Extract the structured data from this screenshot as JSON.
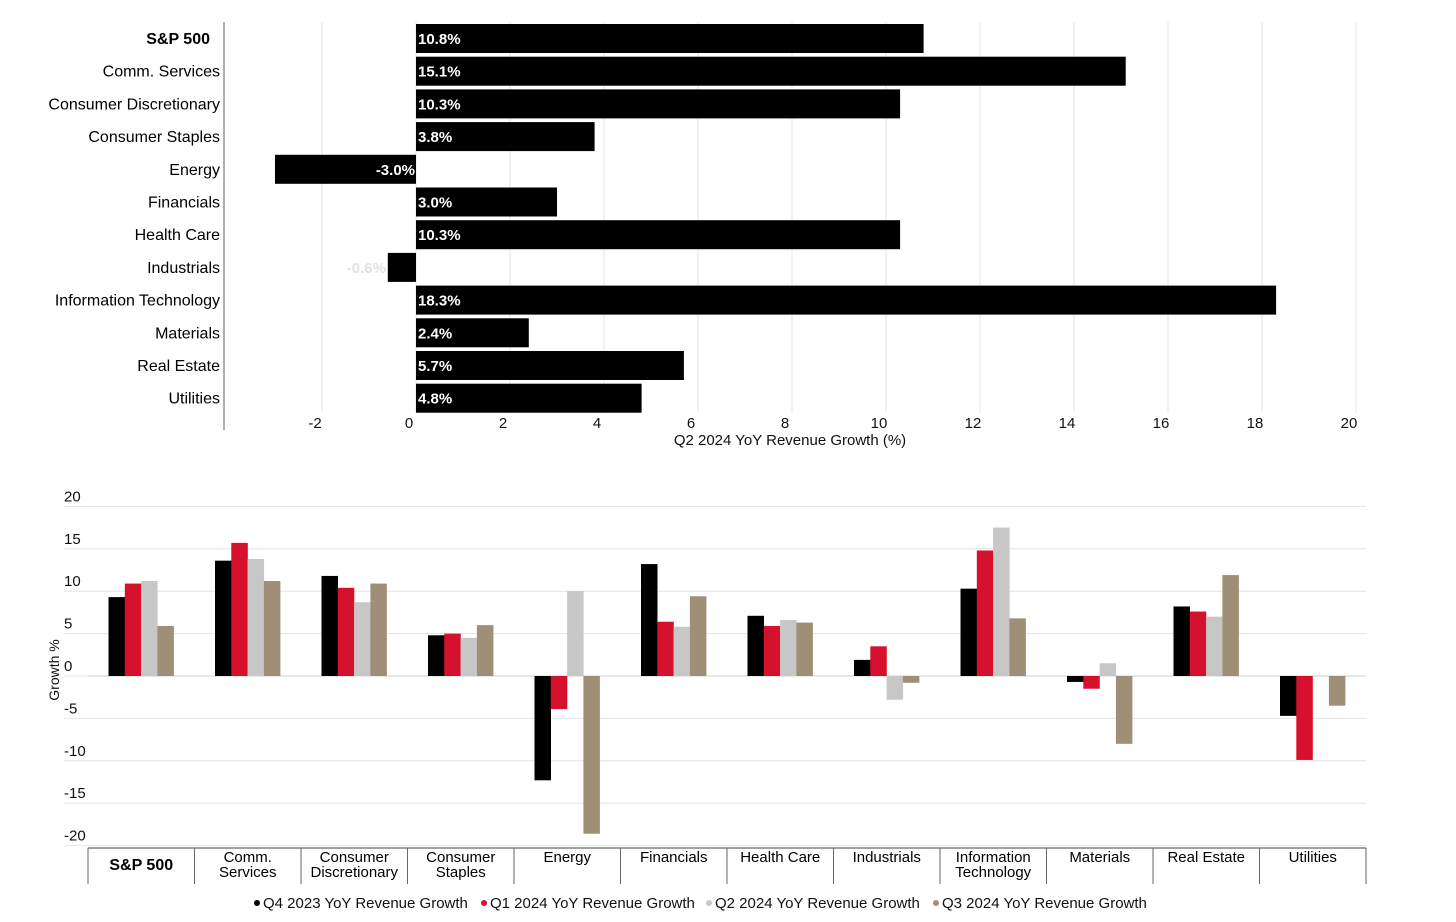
{
  "chart_data": [
    {
      "type": "bar",
      "orientation": "horizontal",
      "title": "",
      "xlabel": "Q2 2024 YoY Revenue Growth (%)",
      "ylabel": "",
      "xlim": [
        -4,
        20
      ],
      "ticks": [
        -2,
        0,
        2,
        4,
        6,
        8,
        10,
        12,
        14,
        16,
        18,
        20
      ],
      "grid": true,
      "bar_color": "#000000",
      "categories": [
        "S&P 500",
        "Comm. Services",
        "Consumer Discretionary",
        "Consumer Staples",
        "Energy",
        "Financials",
        "Health Care",
        "Industrials",
        "Information Technology",
        "Materials",
        "Real Estate",
        "Utilities"
      ],
      "values": [
        10.8,
        15.1,
        10.3,
        3.8,
        -3.0,
        3.0,
        10.3,
        -0.6,
        18.3,
        2.4,
        5.7,
        4.8
      ],
      "data_labels": [
        "10.8%",
        "15.1%",
        "10.3%",
        "3.8%",
        "-3.0%",
        "3.0%",
        "10.3%",
        "-0.6%",
        "18.3%",
        "2.4%",
        "5.7%",
        "4.8%"
      ]
    },
    {
      "type": "bar",
      "orientation": "vertical",
      "title": "",
      "xlabel": "",
      "ylabel": "Growth %",
      "ylim": [
        -20,
        20
      ],
      "ticks": [
        20,
        15,
        10,
        5,
        0,
        -5,
        -10,
        -15,
        -20
      ],
      "grid": true,
      "legend_position": "bottom",
      "categories": [
        [
          "S&P 500"
        ],
        [
          "Comm.",
          "Services"
        ],
        [
          "Consumer",
          "Discretionary"
        ],
        [
          "Consumer",
          "Staples"
        ],
        [
          "Energy"
        ],
        [
          "Financials"
        ],
        [
          "Health Care"
        ],
        [
          "Industrials"
        ],
        [
          "Information",
          "Technology"
        ],
        [
          "Materials"
        ],
        [
          "Real Estate"
        ],
        [
          "Utilities"
        ]
      ],
      "series": [
        {
          "name": "Q4 2023 YoY Revenue Growth",
          "color": "#000000",
          "values": [
            9.3,
            13.6,
            11.8,
            4.8,
            -12.3,
            13.2,
            7.1,
            1.9,
            10.3,
            -0.7,
            8.2,
            -4.7
          ]
        },
        {
          "name": "Q1 2024 YoY Revenue Growth",
          "color": "#d6112d",
          "values": [
            10.9,
            15.7,
            10.4,
            5.0,
            -3.9,
            6.4,
            5.9,
            3.5,
            14.8,
            -1.5,
            7.6,
            -9.9
          ]
        },
        {
          "name": "Q2 2024 YoY Revenue Growth",
          "color": "#c7c7c7",
          "values": [
            11.2,
            13.8,
            8.7,
            4.5,
            10.0,
            5.8,
            6.6,
            -2.8,
            17.5,
            1.5,
            7.0,
            0.0
          ]
        },
        {
          "name": "Q3 2024 YoY Revenue Growth",
          "color": "#a08f77",
          "values": [
            5.9,
            11.2,
            10.9,
            6.0,
            -18.6,
            9.4,
            6.3,
            -0.8,
            6.8,
            -8.0,
            11.9,
            -3.5
          ]
        }
      ]
    }
  ]
}
